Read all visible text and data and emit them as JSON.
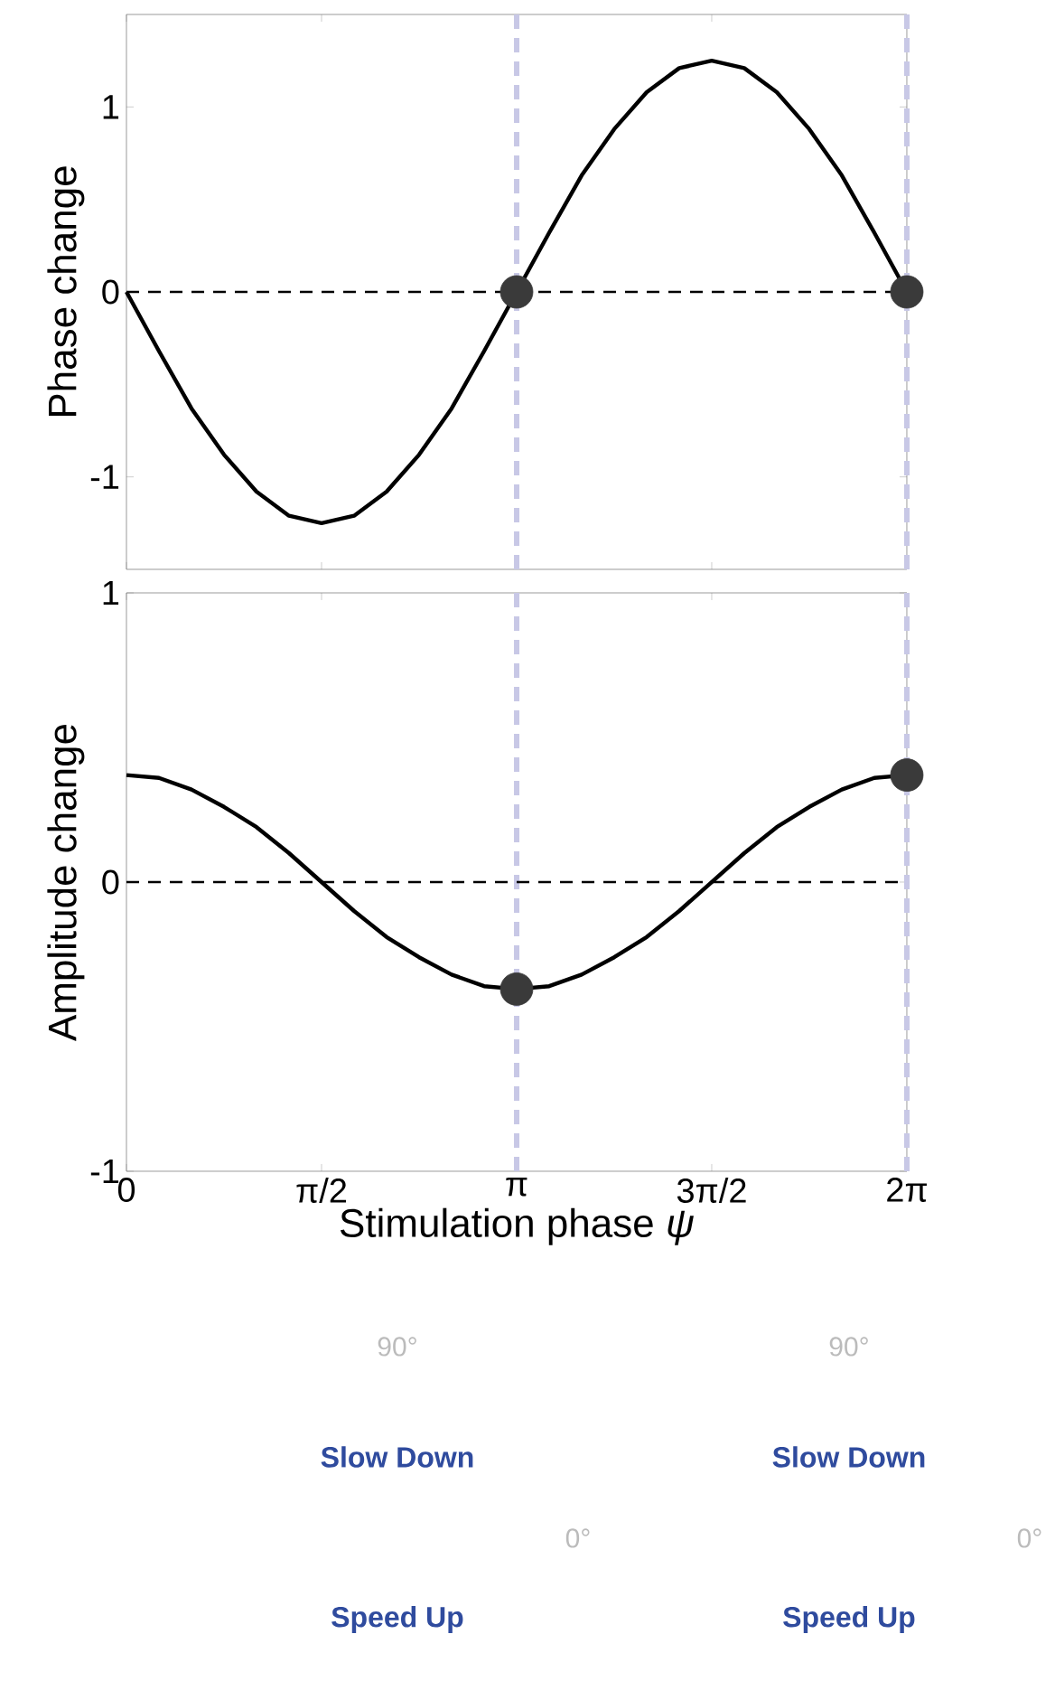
{
  "chart_data": [
    {
      "type": "line",
      "ylabel": "Phase change",
      "xlim": [
        0,
        6.2832
      ],
      "ylim": [
        -1.5,
        1.5
      ],
      "xticks": [
        {
          "value": 0,
          "label": null
        },
        {
          "value": 1.5708,
          "label": null
        },
        {
          "value": 3.1416,
          "label": null
        },
        {
          "value": 4.7124,
          "label": null
        },
        {
          "value": 6.2832,
          "label": null
        }
      ],
      "yticks": [
        -1,
        0,
        1
      ],
      "tick_labels": "y",
      "grid": false,
      "series": [
        {
          "type": "line",
          "color": "#000000",
          "line_style": "solid",
          "x": [
            0,
            0.2618,
            0.5236,
            0.7854,
            1.0472,
            1.309,
            1.5708,
            1.8326,
            2.0944,
            2.3562,
            2.618,
            2.8798,
            3.1416,
            3.4034,
            3.6652,
            3.927,
            4.1888,
            4.4506,
            4.7124,
            4.9742,
            5.236,
            5.4978,
            5.7596,
            6.0214,
            6.2832
          ],
          "values": [
            0,
            -0.32,
            -0.63,
            -0.88,
            -1.08,
            -1.21,
            -1.25,
            -1.21,
            -1.08,
            -0.88,
            -0.63,
            -0.32,
            0,
            0.32,
            0.63,
            0.88,
            1.08,
            1.21,
            1.25,
            1.21,
            1.08,
            0.88,
            0.63,
            0.32,
            0
          ]
        },
        {
          "type": "scatter",
          "color": "#3a3a3a",
          "marker": "circle",
          "x": [
            3.1416,
            6.2832
          ],
          "values": [
            0,
            0
          ]
        }
      ],
      "ref_lines": [
        {
          "axis": "x",
          "value": 3.1416,
          "color": "#c8c8e6",
          "line_style": "dashed"
        },
        {
          "axis": "x",
          "value": 6.2832,
          "color": "#c8c8e6",
          "line_style": "dashed"
        },
        {
          "axis": "y",
          "value": 0,
          "color": "#000000",
          "line_style": "dashed"
        }
      ]
    },
    {
      "type": "line",
      "ylabel": "Amplitude change",
      "xlabel": "Stimulation phase *ψ*",
      "xlim": [
        0,
        6.2832
      ],
      "ylim": [
        -1,
        1
      ],
      "xticks": [
        0,
        {
          "value": 1.5708,
          "label": "π/2"
        },
        {
          "value": 3.1416,
          "label": "π"
        },
        {
          "value": 4.7124,
          "label": "3π/2"
        },
        {
          "value": 6.2832,
          "label": "2π"
        }
      ],
      "yticks": [
        -1,
        0,
        1
      ],
      "grid": false,
      "series": [
        {
          "type": "line",
          "color": "#000000",
          "line_style": "solid",
          "x": [
            0,
            0.2618,
            0.5236,
            0.7854,
            1.0472,
            1.309,
            1.5708,
            1.8326,
            2.0944,
            2.3562,
            2.618,
            2.8798,
            3.1416,
            3.4034,
            3.6652,
            3.927,
            4.1888,
            4.4506,
            4.7124,
            4.9742,
            5.236,
            5.4978,
            5.7596,
            6.0214,
            6.2832
          ],
          "values": [
            0.37,
            0.36,
            0.32,
            0.26,
            0.19,
            0.1,
            0,
            -0.1,
            -0.19,
            -0.26,
            -0.32,
            -0.36,
            -0.37,
            -0.36,
            -0.32,
            -0.26,
            -0.19,
            -0.1,
            0,
            0.1,
            0.19,
            0.26,
            0.32,
            0.36,
            0.37
          ]
        },
        {
          "type": "scatter",
          "color": "#3a3a3a",
          "marker": "circle",
          "x": [
            3.1416,
            6.2832
          ],
          "values": [
            -0.37,
            0.37
          ]
        }
      ],
      "ref_lines": [
        {
          "axis": "x",
          "value": 3.1416,
          "color": "#c8c8e6",
          "line_style": "dashed"
        },
        {
          "axis": "x",
          "value": 6.2832,
          "color": "#c8c8e6",
          "line_style": "dashed"
        },
        {
          "axis": "y",
          "value": 0,
          "color": "#000000",
          "line_style": "dashed"
        }
      ]
    },
    {
      "type": "other",
      "annotations": [
        "90°",
        "0°",
        "Slow Down",
        "Speed Up"
      ]
    },
    {
      "type": "other",
      "annotations": [
        "90°",
        "0°",
        "Slow Down",
        "Speed Up"
      ]
    }
  ]
}
